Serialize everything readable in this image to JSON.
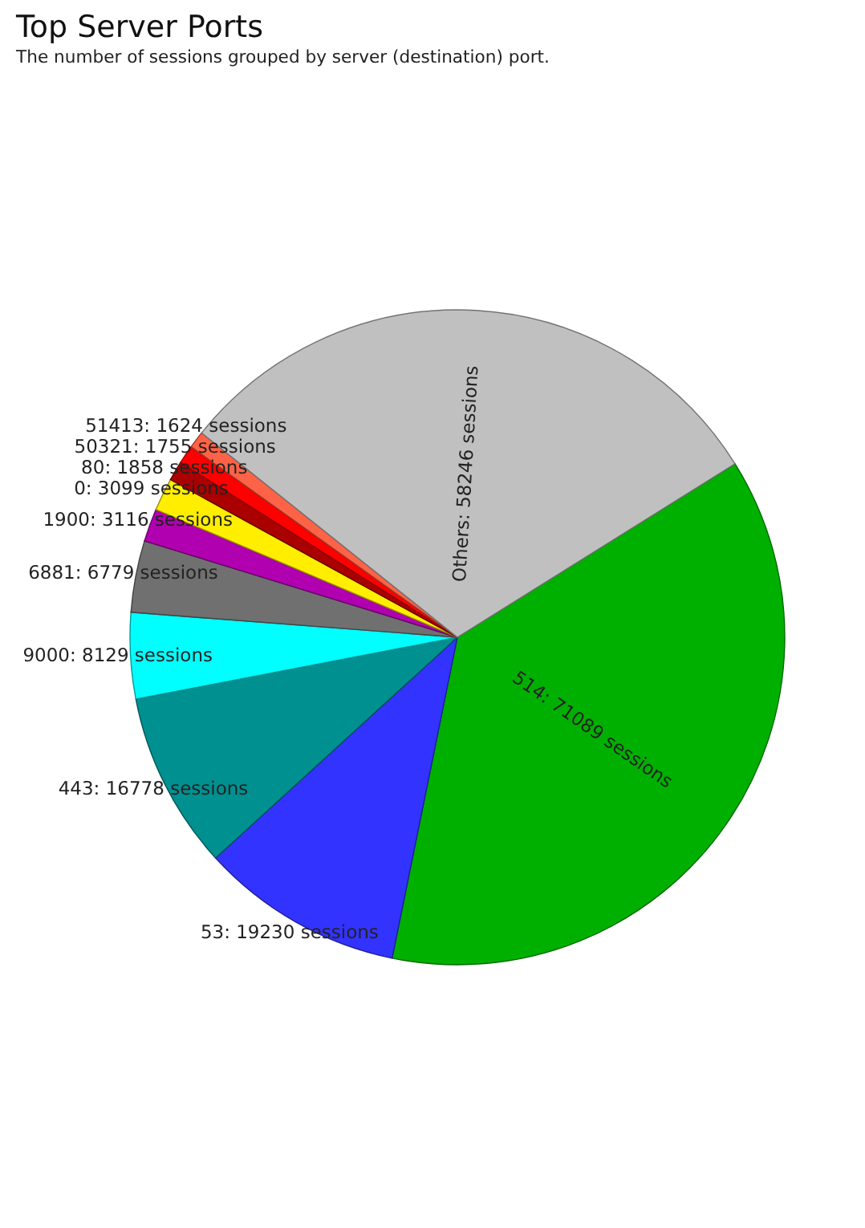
{
  "chart_data": {
    "type": "pie",
    "title": "Top Server Ports",
    "subtitle": "The number of sessions grouped by server (destination) port.",
    "categories": [
      "514",
      "53",
      "443",
      "9000",
      "6881",
      "1900",
      "0",
      "80",
      "50321",
      "51413",
      "Others"
    ],
    "values": [
      71089,
      19230,
      16778,
      8129,
      6779,
      3116,
      3099,
      1858,
      1755,
      1624,
      58246
    ],
    "colors": [
      "#00b000",
      "#3333ff",
      "#009090",
      "#00ffff",
      "#707070",
      "#b000b0",
      "#ffee00",
      "#aa0000",
      "#ff0000",
      "#ff6347",
      "#c0c0c0"
    ],
    "value_labels": [
      "71089 sessions",
      "19230 sessions",
      "16778 sessions",
      "8129 sessions",
      "6779 sessions",
      "3116 sessions",
      "3099 sessions",
      "1858 sessions",
      "1755 sessions",
      "1624 sessions",
      "58246 sessions"
    ]
  }
}
